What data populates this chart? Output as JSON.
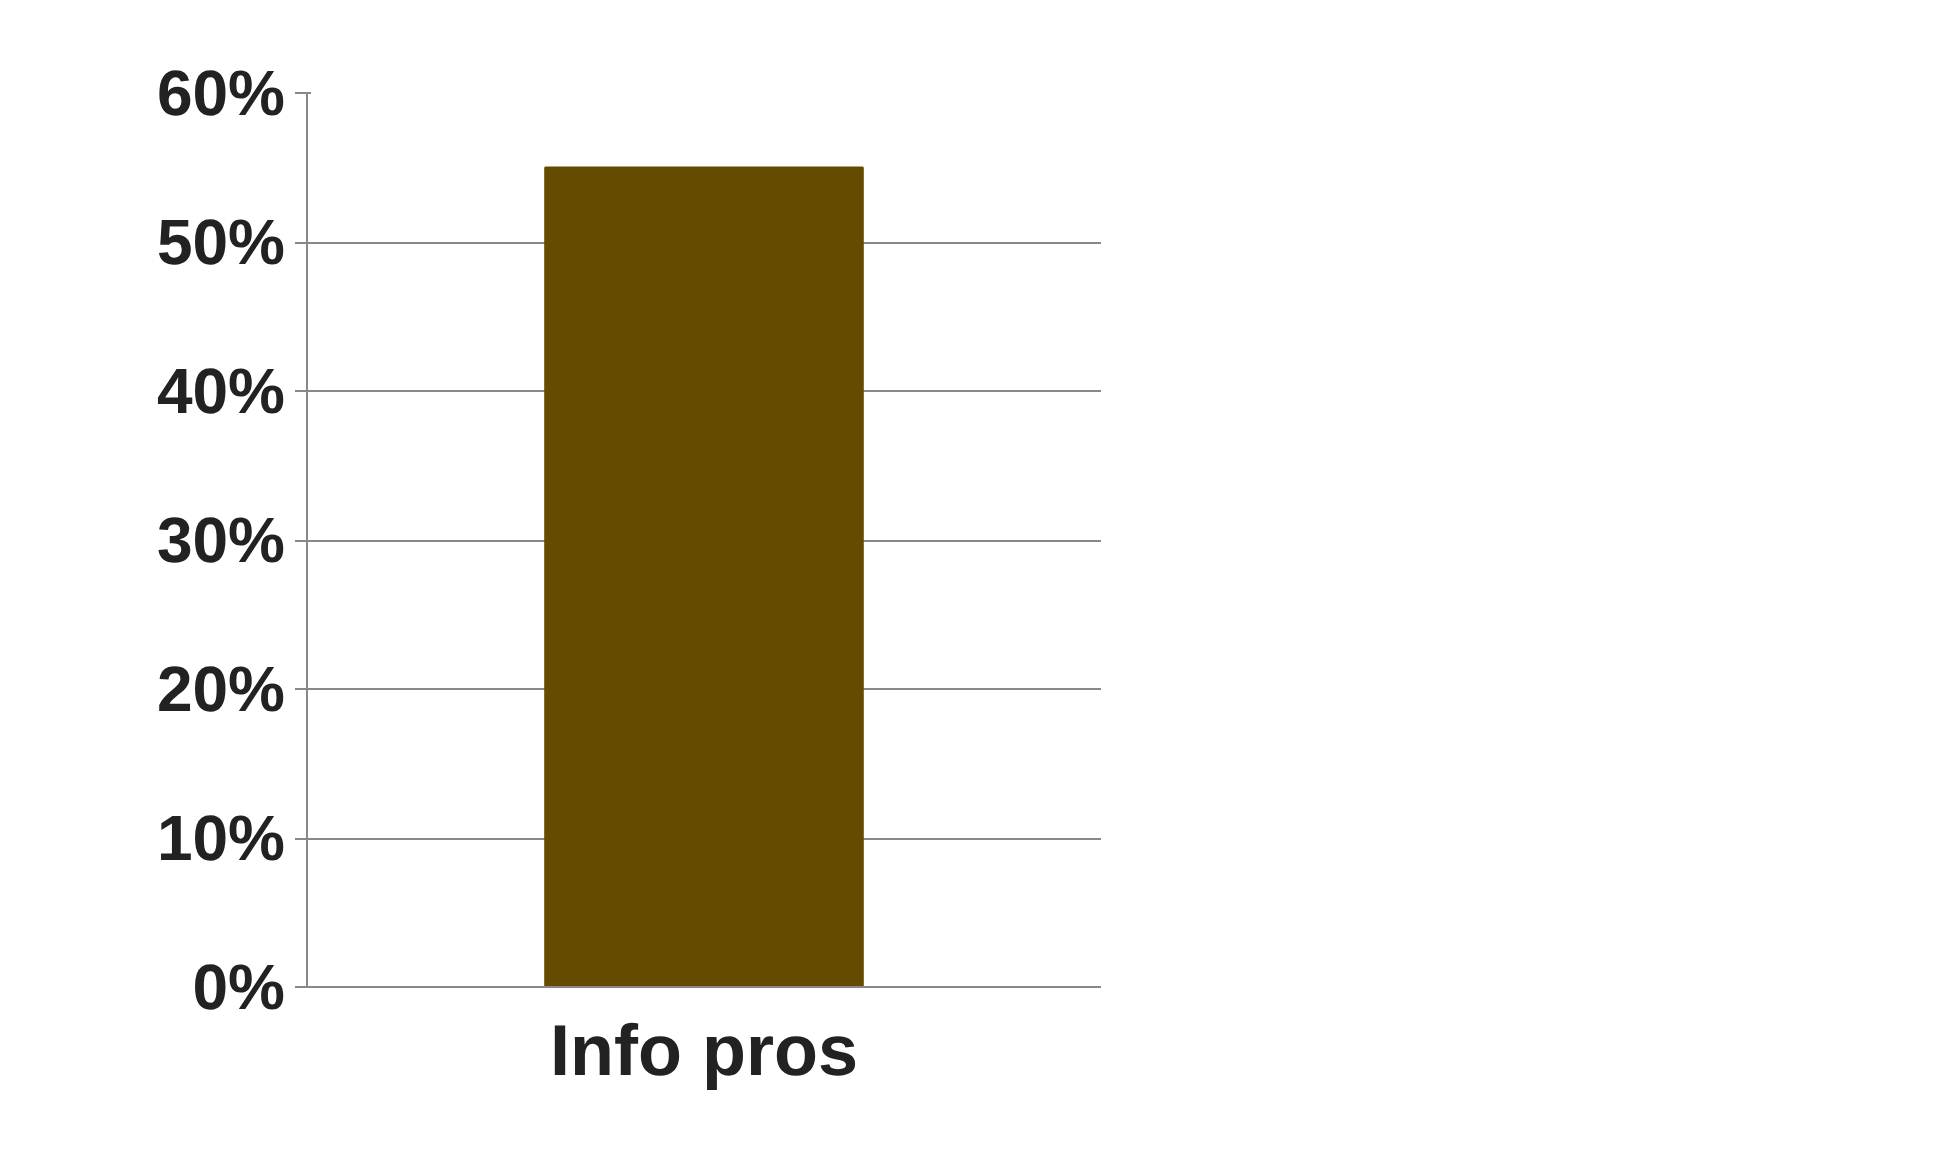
{
  "chart_data": {
    "type": "bar",
    "categories": [
      "Info pros"
    ],
    "values": [
      55
    ],
    "color": "#654b00",
    "ylim": [
      0,
      60
    ],
    "yticks": [
      {
        "value": 0,
        "label": "0%"
      },
      {
        "value": 10,
        "label": "10%"
      },
      {
        "value": 20,
        "label": "20%"
      },
      {
        "value": 30,
        "label": "30%"
      },
      {
        "value": 40,
        "label": "40%"
      },
      {
        "value": 50,
        "label": "50%"
      },
      {
        "value": 60,
        "label": "60%"
      }
    ],
    "grid": "y"
  }
}
